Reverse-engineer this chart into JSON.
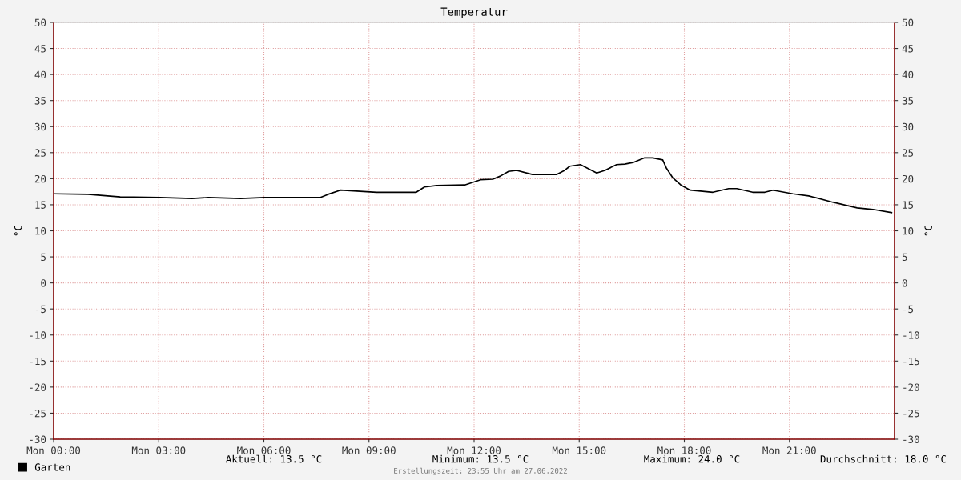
{
  "chart_data": {
    "type": "line",
    "title": "Temperatur",
    "ylabel": "°C",
    "y2label": "°C",
    "x": [
      "2022-06-27T00:00",
      "2022-06-27T00:59",
      "2022-06-27T01:54",
      "2022-06-27T03:02",
      "2022-06-27T03:57",
      "2022-06-27T04:25",
      "2022-06-27T05:20",
      "2022-06-27T06:01",
      "2022-06-27T07:37",
      "2022-06-27T07:50",
      "2022-06-27T08:11",
      "2022-06-27T09:13",
      "2022-06-27T10:21",
      "2022-06-27T10:35",
      "2022-06-27T10:56",
      "2022-06-27T11:44",
      "2022-06-27T12:11",
      "2022-06-27T12:32",
      "2022-06-27T12:45",
      "2022-06-27T12:59",
      "2022-06-27T13:13",
      "2022-06-27T13:40",
      "2022-06-27T14:21",
      "2022-06-27T14:35",
      "2022-06-27T14:44",
      "2022-06-27T15:02",
      "2022-06-27T15:30",
      "2022-06-27T15:44",
      "2022-06-27T16:04",
      "2022-06-27T16:18",
      "2022-06-27T16:32",
      "2022-06-27T16:52",
      "2022-06-27T17:06",
      "2022-06-27T17:23",
      "2022-06-27T17:29",
      "2022-06-27T17:40",
      "2022-06-27T17:54",
      "2022-06-27T18:10",
      "2022-06-27T18:49",
      "2022-06-27T19:16",
      "2022-06-27T19:30",
      "2022-06-27T19:57",
      "2022-06-27T20:18",
      "2022-06-27T20:32",
      "2022-06-27T21:06",
      "2022-06-27T21:33",
      "2022-06-27T22:14",
      "2022-06-27T22:56",
      "2022-06-27T23:23",
      "2022-06-27T23:55"
    ],
    "series": [
      {
        "name": "Garten",
        "color": "#000000",
        "values": [
          17.1,
          17.0,
          16.5,
          16.4,
          16.2,
          16.4,
          16.2,
          16.4,
          16.4,
          17.0,
          17.8,
          17.4,
          17.4,
          18.4,
          18.7,
          18.8,
          19.8,
          19.9,
          20.5,
          21.4,
          21.6,
          20.8,
          20.8,
          21.6,
          22.4,
          22.7,
          21.1,
          21.6,
          22.7,
          22.8,
          23.1,
          24.0,
          24.0,
          23.6,
          22.1,
          20.2,
          18.8,
          17.8,
          17.4,
          18.1,
          18.1,
          17.4,
          17.4,
          17.8,
          17.1,
          16.7,
          15.5,
          14.4,
          14.1,
          13.5
        ]
      }
    ],
    "xlim": [
      "2022-06-27T00:00",
      "2022-06-28T00:00"
    ],
    "xticks": [
      {
        "value": "2022-06-27T00:00",
        "label": "Mon 00:00"
      },
      {
        "value": "2022-06-27T03:00",
        "label": "Mon 03:00"
      },
      {
        "value": "2022-06-27T06:00",
        "label": "Mon 06:00"
      },
      {
        "value": "2022-06-27T09:00",
        "label": "Mon 09:00"
      },
      {
        "value": "2022-06-27T12:00",
        "label": "Mon 12:00"
      },
      {
        "value": "2022-06-27T15:00",
        "label": "Mon 15:00"
      },
      {
        "value": "2022-06-27T18:00",
        "label": "Mon 18:00"
      },
      {
        "value": "2022-06-27T21:00",
        "label": "Mon 21:00"
      }
    ],
    "ylim": [
      -30,
      50
    ],
    "yticks": [
      -30,
      -25,
      -20,
      -15,
      -10,
      -5,
      0,
      5,
      10,
      15,
      20,
      25,
      30,
      35,
      40,
      45,
      50
    ],
    "y2lim": [
      -30,
      50
    ],
    "y2ticks": [
      -30,
      -25,
      -20,
      -15,
      -10,
      -5,
      0,
      5,
      10,
      15,
      20,
      25,
      30,
      35,
      40,
      45,
      50
    ],
    "grid": true,
    "legend": "bottom left",
    "line_style": "solid",
    "marker": "none",
    "annotations": [
      "Aktuell: 13.5 °C",
      "Minimum: 13.5 °C",
      "Maximum: 24.0 °C",
      "Durchschnitt: 18.0 °C",
      "Erstellungszeit: 23:55 Uhr am 27.06.2022"
    ]
  }
}
